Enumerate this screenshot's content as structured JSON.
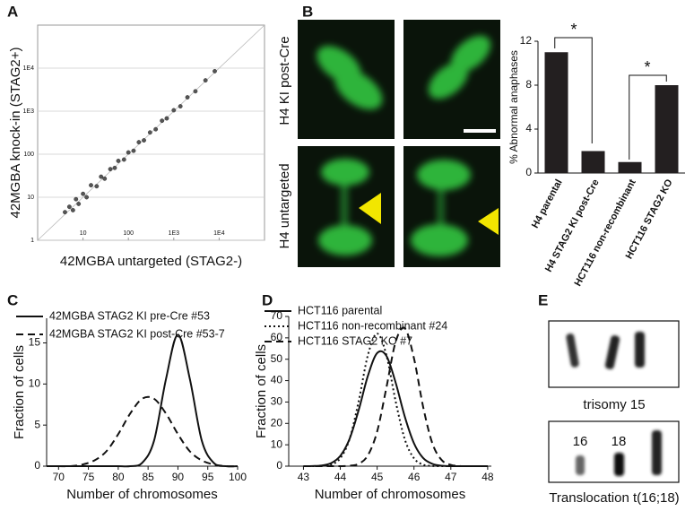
{
  "panel_labels": [
    "A",
    "B",
    "C",
    "D",
    "E"
  ],
  "images": {
    "row_labels": [
      "H4 KI post-Cre",
      "H4 untargeted"
    ]
  },
  "karyotype": {
    "trisomy_caption": "trisomy 15",
    "chromosome_labels": [
      "16",
      "18"
    ],
    "translocation_caption": "Translocation t(16;18)"
  },
  "chart_data": [
    {
      "type": "scatter",
      "x_label": "42MGBA untargeted (STAG2-)",
      "y_label": "42MGBA knock-in (STAG2+)",
      "xscale": "log",
      "yscale": "log",
      "xlim": [
        1,
        100000
      ],
      "ylim": [
        1,
        100000
      ],
      "xticks": [
        10,
        100,
        {
          "value": 1000,
          "label": "1E3"
        },
        {
          "value": 10000,
          "label": "1E4"
        }
      ],
      "yticks": [
        1,
        10,
        100,
        {
          "value": 1000,
          "label": "1E3"
        },
        {
          "value": 10000,
          "label": "1E4"
        }
      ],
      "grid": "y",
      "identity_line": true,
      "color": "#555555",
      "x": [
        4,
        5,
        6,
        7,
        8,
        10,
        12,
        15,
        20,
        25,
        30,
        40,
        50,
        60,
        80,
        100,
        130,
        170,
        220,
        300,
        400,
        550,
        700,
        1000,
        1400,
        2000,
        3000,
        5000,
        8000
      ],
      "y": [
        4.5,
        6,
        5,
        9,
        7,
        12,
        10,
        19,
        18,
        30,
        27,
        45,
        48,
        70,
        75,
        110,
        120,
        190,
        210,
        320,
        380,
        600,
        680,
        1050,
        1300,
        2100,
        2900,
        5200,
        8500
      ]
    },
    {
      "type": "bar",
      "y_label": "% Abnormal anaphases",
      "categories": [
        "H4 parental",
        "H4 STAG2 KI post-Cre",
        "HCT116 non-recombinant",
        "HCT116 STAG2 KO"
      ],
      "values": [
        11,
        2,
        1,
        8
      ],
      "color": "#231f20",
      "ylim": [
        0,
        12
      ],
      "yticks": [
        0,
        4,
        8,
        12
      ],
      "annotations": [
        "*",
        "*"
      ]
    },
    {
      "type": "line",
      "x_label": "Number of chromosomes",
      "y_label": "Fraction of cells",
      "x": [
        68,
        70,
        72,
        74,
        76,
        78,
        80,
        82,
        84,
        86,
        88,
        90,
        92,
        94,
        96,
        98,
        100
      ],
      "xlim": [
        68,
        100
      ],
      "xticks": [
        70,
        75,
        80,
        85,
        90,
        95,
        100
      ],
      "ylim": [
        0,
        18
      ],
      "yticks": [
        0,
        5,
        10,
        15
      ],
      "series": [
        {
          "name": "42MGBA STAG2 KI pre-Cre #53",
          "color": "#111111",
          "dash": "solid",
          "values": [
            0,
            0,
            0,
            0,
            0,
            0,
            0,
            0,
            0.4,
            3.1,
            10.6,
            16,
            10.6,
            3.1,
            0.4,
            0,
            0
          ]
        },
        {
          "name": "42MGBA STAG2 KI post-Cre #53-7",
          "color": "#111111",
          "dash": "dashed",
          "values": [
            0,
            0,
            0,
            0.2,
            0.7,
            1.8,
            3.9,
            6.4,
            8.2,
            8.2,
            6.4,
            3.9,
            1.8,
            0.7,
            0.2,
            0,
            0
          ]
        }
      ]
    },
    {
      "type": "line",
      "x_label": "Number of chromosomes",
      "y_label": "Fraction of cells",
      "x": [
        43,
        43.25,
        43.5,
        43.75,
        44,
        44.25,
        44.5,
        44.75,
        45,
        45.25,
        45.5,
        45.75,
        46,
        46.25,
        46.5,
        46.75,
        47,
        47.25,
        47.5,
        47.75,
        48
      ],
      "xlim": [
        42.6,
        48.1
      ],
      "xticks": [
        43,
        44,
        45,
        46,
        47,
        48
      ],
      "ylim": [
        0,
        70
      ],
      "yticks": [
        0,
        10,
        20,
        30,
        40,
        50,
        60,
        70
      ],
      "series": [
        {
          "name": "HCT116 parental",
          "color": "#111111",
          "dash": "solid",
          "values": [
            0,
            0.06,
            0.32,
            1.4,
            4.8,
            12.7,
            26.3,
            42.3,
            52.9,
            51.6,
            39.2,
            23.2,
            10.7,
            3.8,
            1.1,
            0.2,
            0,
            0,
            0,
            0,
            0
          ]
        },
        {
          "name": "HCT116 non-recombinant #24",
          "color": "#111111",
          "dash": "dotted",
          "values": [
            0,
            0,
            0.1,
            0.7,
            3.7,
            12.6,
            30.5,
            52,
            62,
            52,
            30.5,
            12.6,
            3.7,
            0.7,
            0.1,
            0,
            0,
            0,
            0,
            0,
            0
          ]
        },
        {
          "name": "HCT116 STAG2 KO #7",
          "color": "#111111",
          "dash": "dashed",
          "values": [
            0,
            0,
            0,
            0,
            0,
            0.2,
            1.1,
            5.1,
            16.2,
            36.6,
            58,
            64.5,
            50.4,
            27.6,
            10.6,
            2.9,
            0.6,
            0.07,
            0,
            0,
            0
          ]
        }
      ]
    }
  ]
}
